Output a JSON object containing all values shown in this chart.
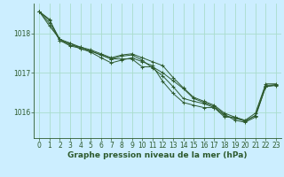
{
  "background_color": "#cceeff",
  "grid_color": "#aaddcc",
  "line_color": "#2d5a2d",
  "marker_color": "#2d5a2d",
  "xlabel": "Graphe pression niveau de la mer (hPa)",
  "xlabel_fontsize": 6.5,
  "tick_fontsize": 5.5,
  "xlim": [
    -0.5,
    23.5
  ],
  "ylim": [
    1015.35,
    1018.75
  ],
  "yticks": [
    1016,
    1017,
    1018
  ],
  "xticks": [
    0,
    1,
    2,
    3,
    4,
    5,
    6,
    7,
    8,
    9,
    10,
    11,
    12,
    13,
    14,
    15,
    16,
    17,
    18,
    19,
    20,
    21,
    22,
    23
  ],
  "series": [
    [
      1018.55,
      1018.35,
      1017.8,
      1017.75,
      1017.6,
      1017.55,
      1017.45,
      1017.35,
      1017.35,
      1017.35,
      1017.15,
      1017.15,
      1017.0,
      1016.8,
      1016.6,
      1016.35,
      1016.25,
      1016.15,
      1015.95,
      1015.8,
      1015.75,
      1015.88,
      1016.65,
      1016.68
    ],
    [
      1018.55,
      1018.25,
      1017.82,
      1017.68,
      1017.62,
      1017.52,
      1017.38,
      1017.25,
      1017.32,
      1017.38,
      1017.28,
      1017.18,
      1016.78,
      1016.48,
      1016.25,
      1016.18,
      1016.12,
      1016.12,
      1015.88,
      1015.88,
      1015.78,
      1015.92,
      1016.68,
      1016.7
    ],
    [
      1018.55,
      1018.18,
      1017.85,
      1017.7,
      1017.65,
      1017.55,
      1017.45,
      1017.35,
      1017.42,
      1017.45,
      1017.32,
      1017.12,
      1016.92,
      1016.65,
      1016.35,
      1016.28,
      1016.22,
      1016.12,
      1015.92,
      1015.85,
      1015.78,
      1015.92,
      1016.65,
      1016.7
    ],
    [
      1018.55,
      1018.32,
      1017.85,
      1017.75,
      1017.65,
      1017.58,
      1017.48,
      1017.38,
      1017.45,
      1017.48,
      1017.38,
      1017.28,
      1017.18,
      1016.88,
      1016.62,
      1016.38,
      1016.28,
      1016.18,
      1015.98,
      1015.88,
      1015.8,
      1015.98,
      1016.72,
      1016.72
    ]
  ]
}
